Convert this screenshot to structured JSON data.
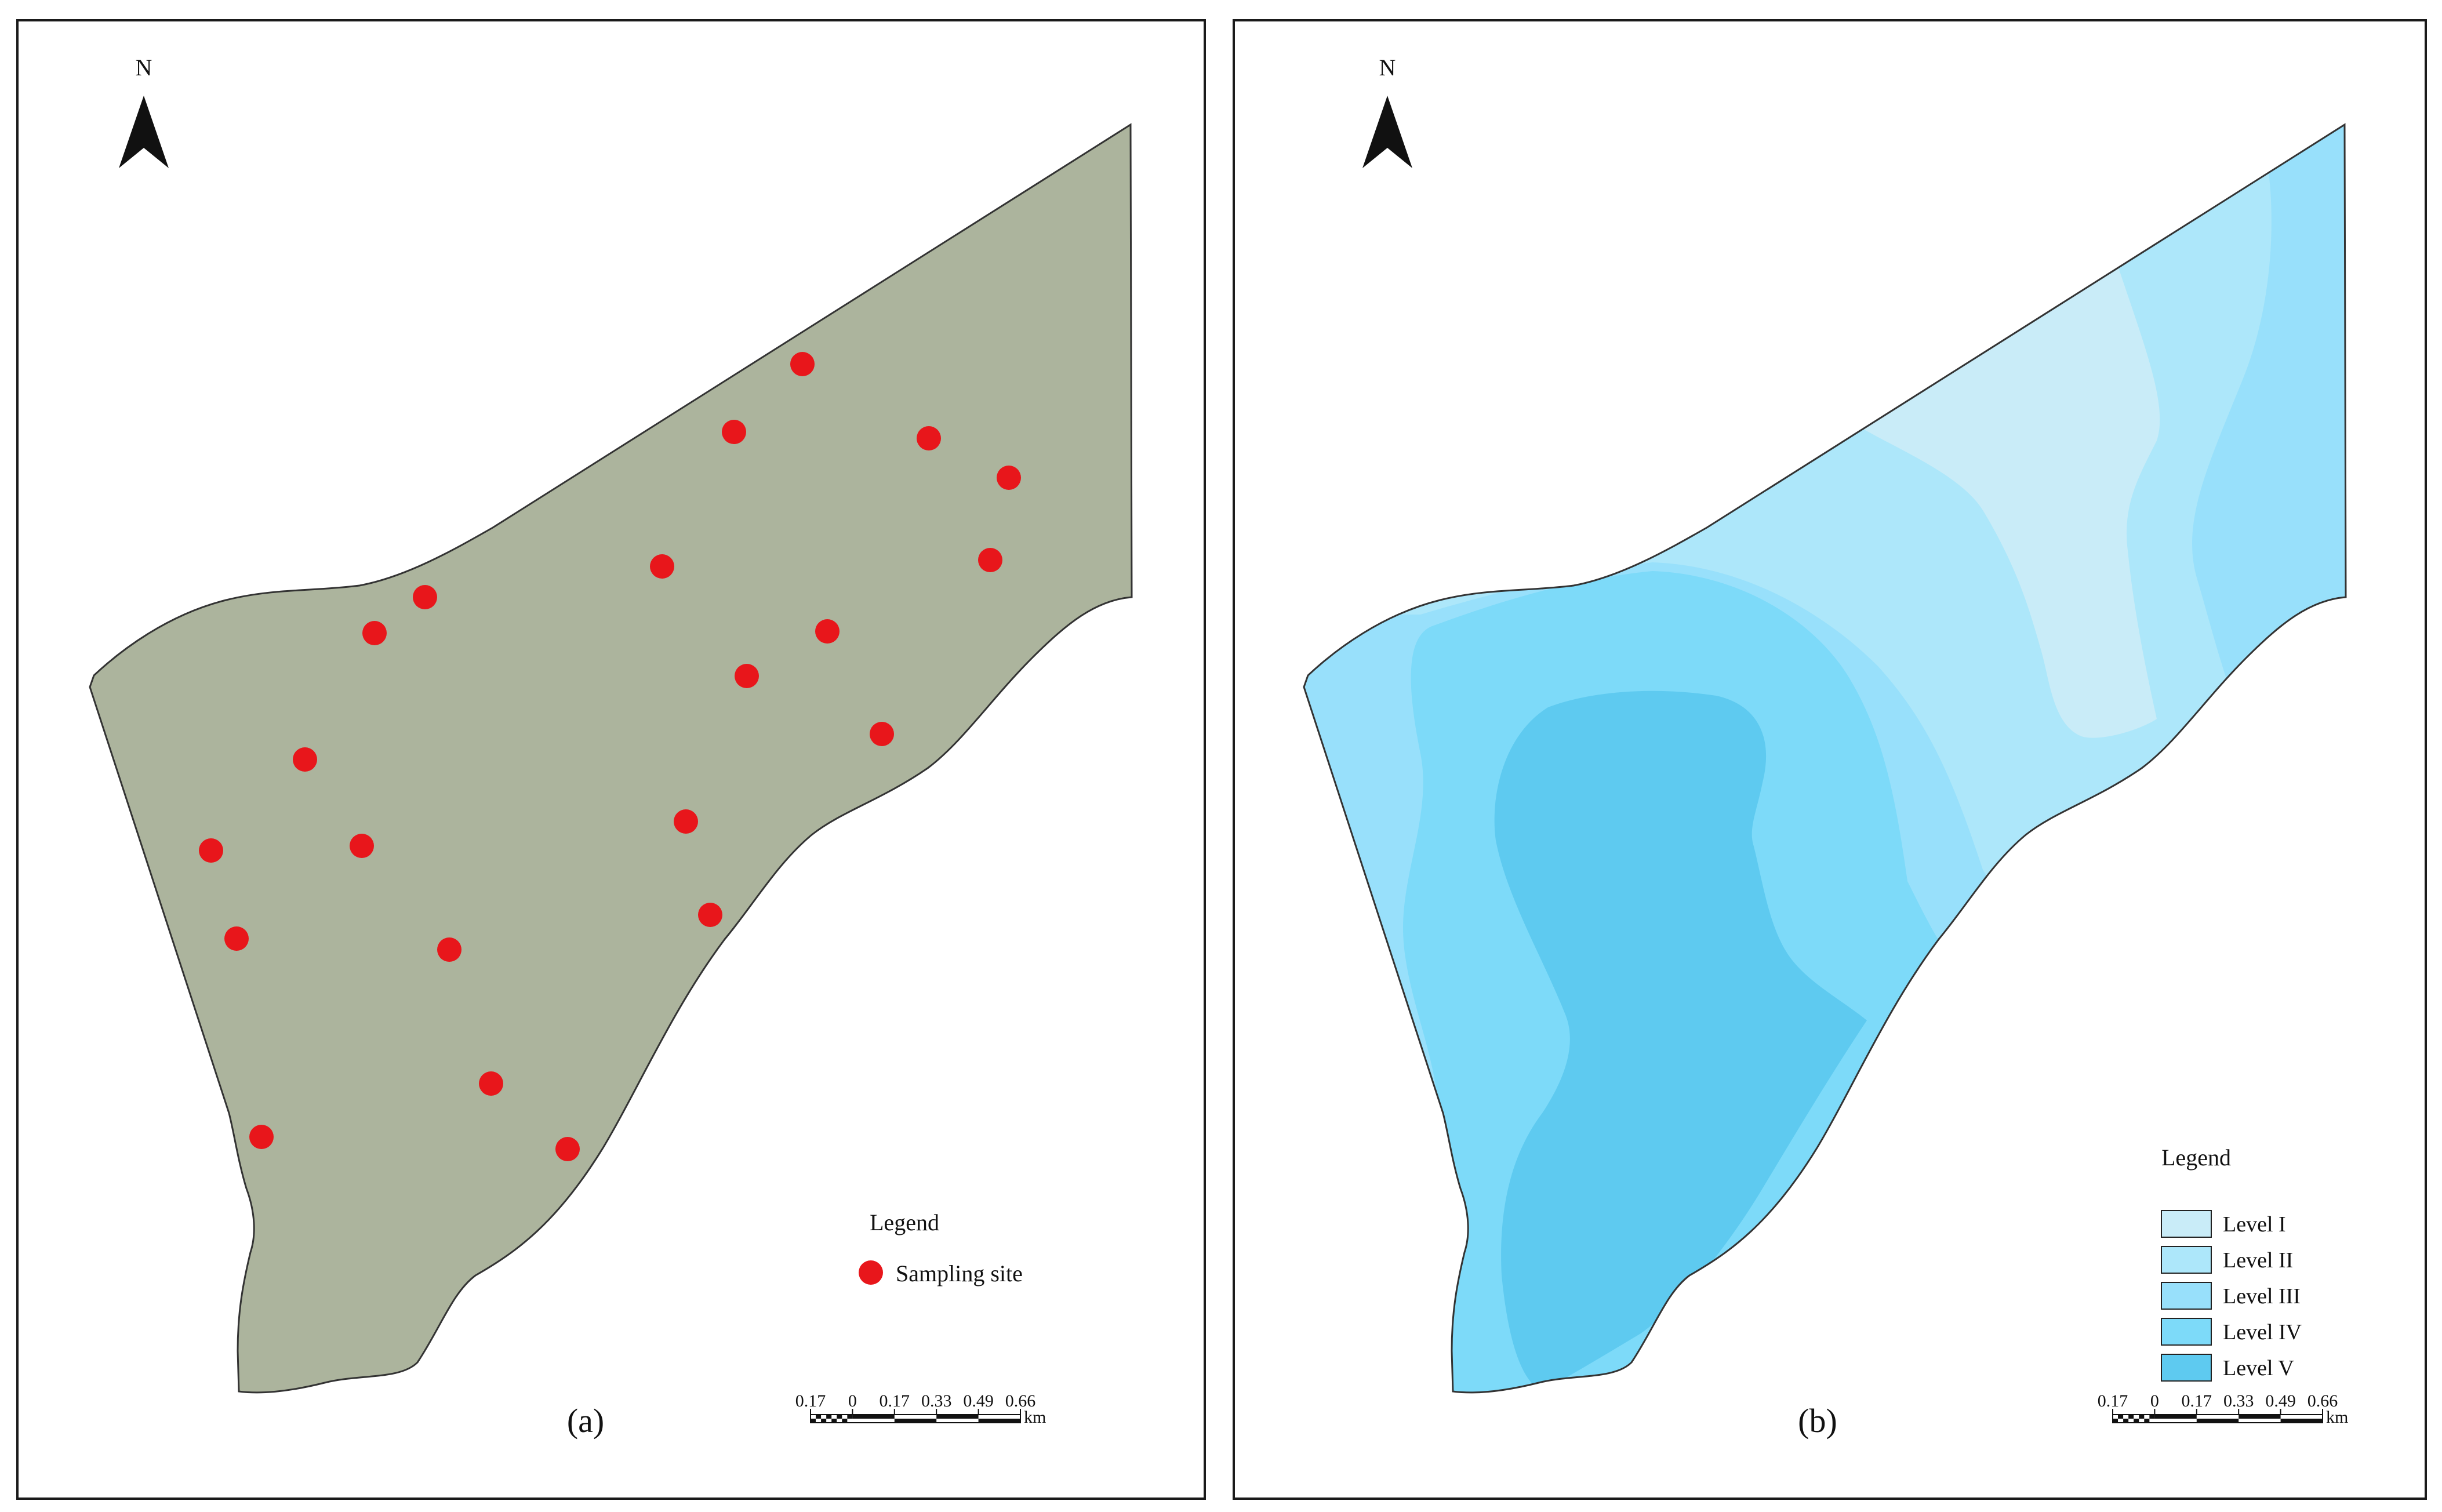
{
  "panels": [
    {
      "caption": "(a)",
      "north_label": "N",
      "legend": {
        "title": "Legend",
        "items": [
          {
            "label": "Sampling site",
            "color": "#e8161b"
          }
        ]
      },
      "scale": {
        "ticks": [
          "0.17",
          "0",
          "0.17",
          "0.33",
          "0.49",
          "0.66"
        ],
        "unit": "km"
      },
      "land_color": "#acb49d"
    },
    {
      "caption": "(b)",
      "north_label": "N",
      "legend": {
        "title": "Legend",
        "items": [
          {
            "label": "Level I",
            "color": "#c9ecf8"
          },
          {
            "label": "Level II",
            "color": "#ade7fa"
          },
          {
            "label": "Level III",
            "color": "#98e0fb"
          },
          {
            "label": "Level IV",
            "color": "#7ddaf9"
          },
          {
            "label": "Level V",
            "color": "#5ecaf0"
          }
        ]
      },
      "scale": {
        "ticks": [
          "0.17",
          "0",
          "0.17",
          "0.33",
          "0.49",
          "0.66"
        ],
        "unit": "km"
      }
    }
  ]
}
